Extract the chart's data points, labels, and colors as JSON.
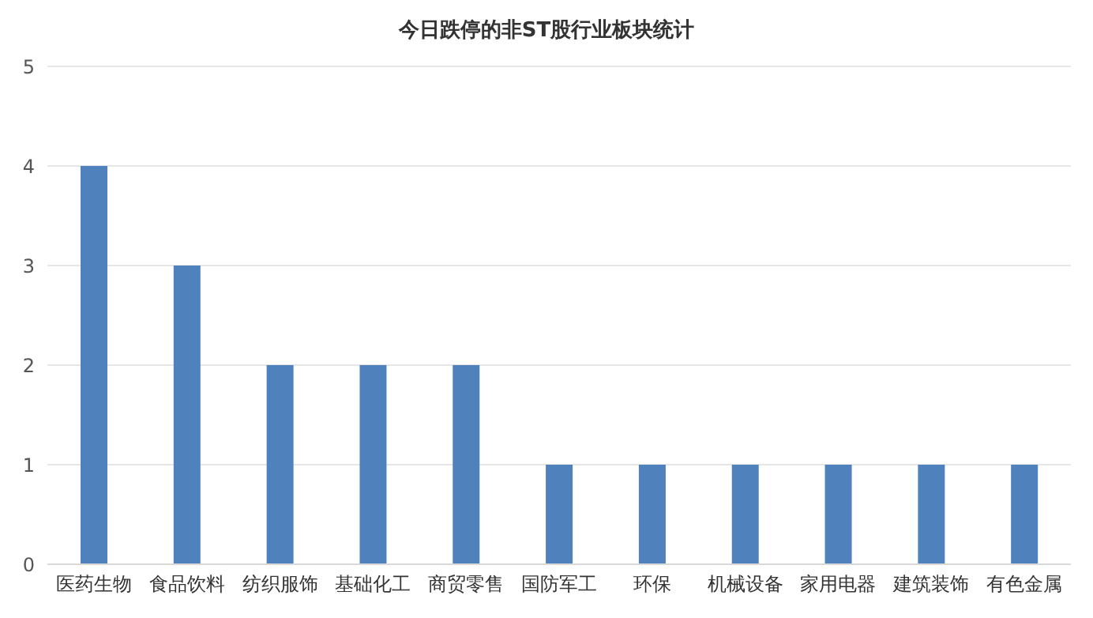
{
  "chart_data": {
    "type": "bar",
    "title": "今日跌停的非ST股行业板块统计",
    "categories": [
      "医药生物",
      "食品饮料",
      "纺织服饰",
      "基础化工",
      "商贸零售",
      "国防军工",
      "环保",
      "机械设备",
      "家用电器",
      "建筑装饰",
      "有色金属"
    ],
    "values": [
      4,
      3,
      2,
      2,
      2,
      1,
      1,
      1,
      1,
      1,
      1
    ],
    "color": "#4f81bd",
    "ylim": [
      0,
      5
    ],
    "yticks": [
      0,
      1,
      2,
      3,
      4,
      5
    ],
    "grid": "y"
  }
}
